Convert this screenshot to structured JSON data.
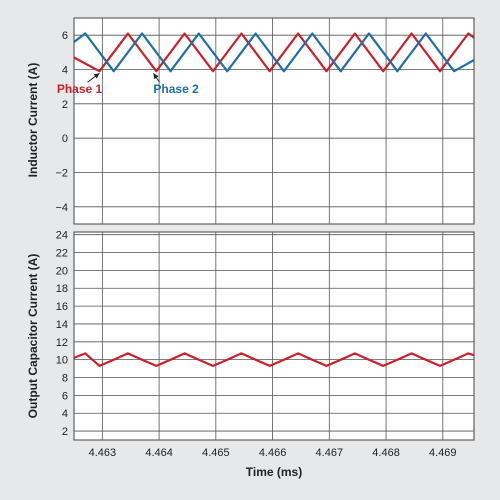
{
  "chart_data": [
    {
      "type": "line",
      "ylabel": "Inductor Current (A)",
      "xlabel": "",
      "xlim": [
        4.4625,
        4.46955
      ],
      "ylim": [
        -5,
        7
      ],
      "y_ticks": [
        6,
        4,
        2,
        0,
        -2,
        -4
      ],
      "y_tick_labels": [
        "6",
        "4",
        "2",
        "0",
        "−2",
        "−4"
      ],
      "grid": true,
      "series": [
        {
          "name": "Phase 1",
          "color": "#cc1f2c",
          "x": [
            4.4625,
            4.46295,
            4.46345,
            4.46395,
            4.46445,
            4.46495,
            4.46545,
            4.46595,
            4.46645,
            4.46695,
            4.46745,
            4.46795,
            4.46845,
            4.46895,
            4.46945,
            4.46955
          ],
          "y": [
            4.7,
            3.9,
            6.1,
            3.9,
            6.1,
            3.9,
            6.1,
            3.9,
            6.1,
            3.9,
            6.1,
            3.9,
            6.1,
            3.9,
            6.1,
            5.85
          ]
        },
        {
          "name": "Phase 2",
          "color": "#1f6ea8",
          "x": [
            4.4625,
            4.4627,
            4.4632,
            4.4637,
            4.4642,
            4.4647,
            4.4652,
            4.4657,
            4.4662,
            4.4667,
            4.4672,
            4.4677,
            4.4682,
            4.4687,
            4.4692,
            4.46955
          ],
          "y": [
            5.6,
            6.1,
            3.9,
            6.1,
            3.9,
            6.1,
            3.9,
            6.1,
            3.9,
            6.1,
            3.9,
            6.1,
            3.9,
            6.1,
            3.9,
            4.55
          ]
        }
      ],
      "annotations": [
        {
          "text": "Phase 1",
          "color": "#cc1f2c",
          "x": 4.46295,
          "y": 3.9
        },
        {
          "text": "Phase 2",
          "color": "#1f6ea8",
          "x": 4.4639,
          "y": 3.9
        }
      ]
    },
    {
      "type": "line",
      "ylabel": "Output Capacitor Current (A)",
      "xlabel": "Time (ms)",
      "xlim": [
        4.4625,
        4.46955
      ],
      "ylim": [
        1,
        24.3
      ],
      "y_ticks": [
        24,
        22,
        20,
        18,
        16,
        14,
        12,
        10,
        8,
        6,
        4,
        2
      ],
      "y_tick_labels": [
        "24",
        "22",
        "20",
        "18",
        "16",
        "14",
        "12",
        "10",
        "8",
        "6",
        "4",
        "2"
      ],
      "x_ticks": [
        4.463,
        4.464,
        4.465,
        4.466,
        4.467,
        4.468,
        4.469
      ],
      "x_tick_labels": [
        "4.463",
        "4.464",
        "4.465",
        "4.466",
        "4.467",
        "4.468",
        "4.469"
      ],
      "grid": true,
      "series": [
        {
          "name": "",
          "color": "#cc1f2c",
          "x": [
            4.4625,
            4.4627,
            4.46295,
            4.4632,
            4.46345,
            4.4637,
            4.46395,
            4.4642,
            4.46445,
            4.4647,
            4.46495,
            4.4652,
            4.46545,
            4.4657,
            4.46595,
            4.4662,
            4.46645,
            4.4667,
            4.46695,
            4.4672,
            4.46745,
            4.4677,
            4.46795,
            4.4682,
            4.46845,
            4.4687,
            4.46895,
            4.4692,
            4.46945,
            4.46955
          ],
          "y": [
            10.2,
            10.7,
            9.3,
            10.0,
            10.7,
            10.0,
            9.3,
            10.0,
            10.7,
            10.0,
            9.3,
            10.0,
            10.7,
            10.0,
            9.3,
            10.0,
            10.7,
            10.0,
            9.3,
            10.0,
            10.7,
            10.0,
            9.3,
            10.0,
            10.7,
            10.0,
            9.3,
            10.0,
            10.7,
            10.5
          ]
        }
      ]
    }
  ]
}
